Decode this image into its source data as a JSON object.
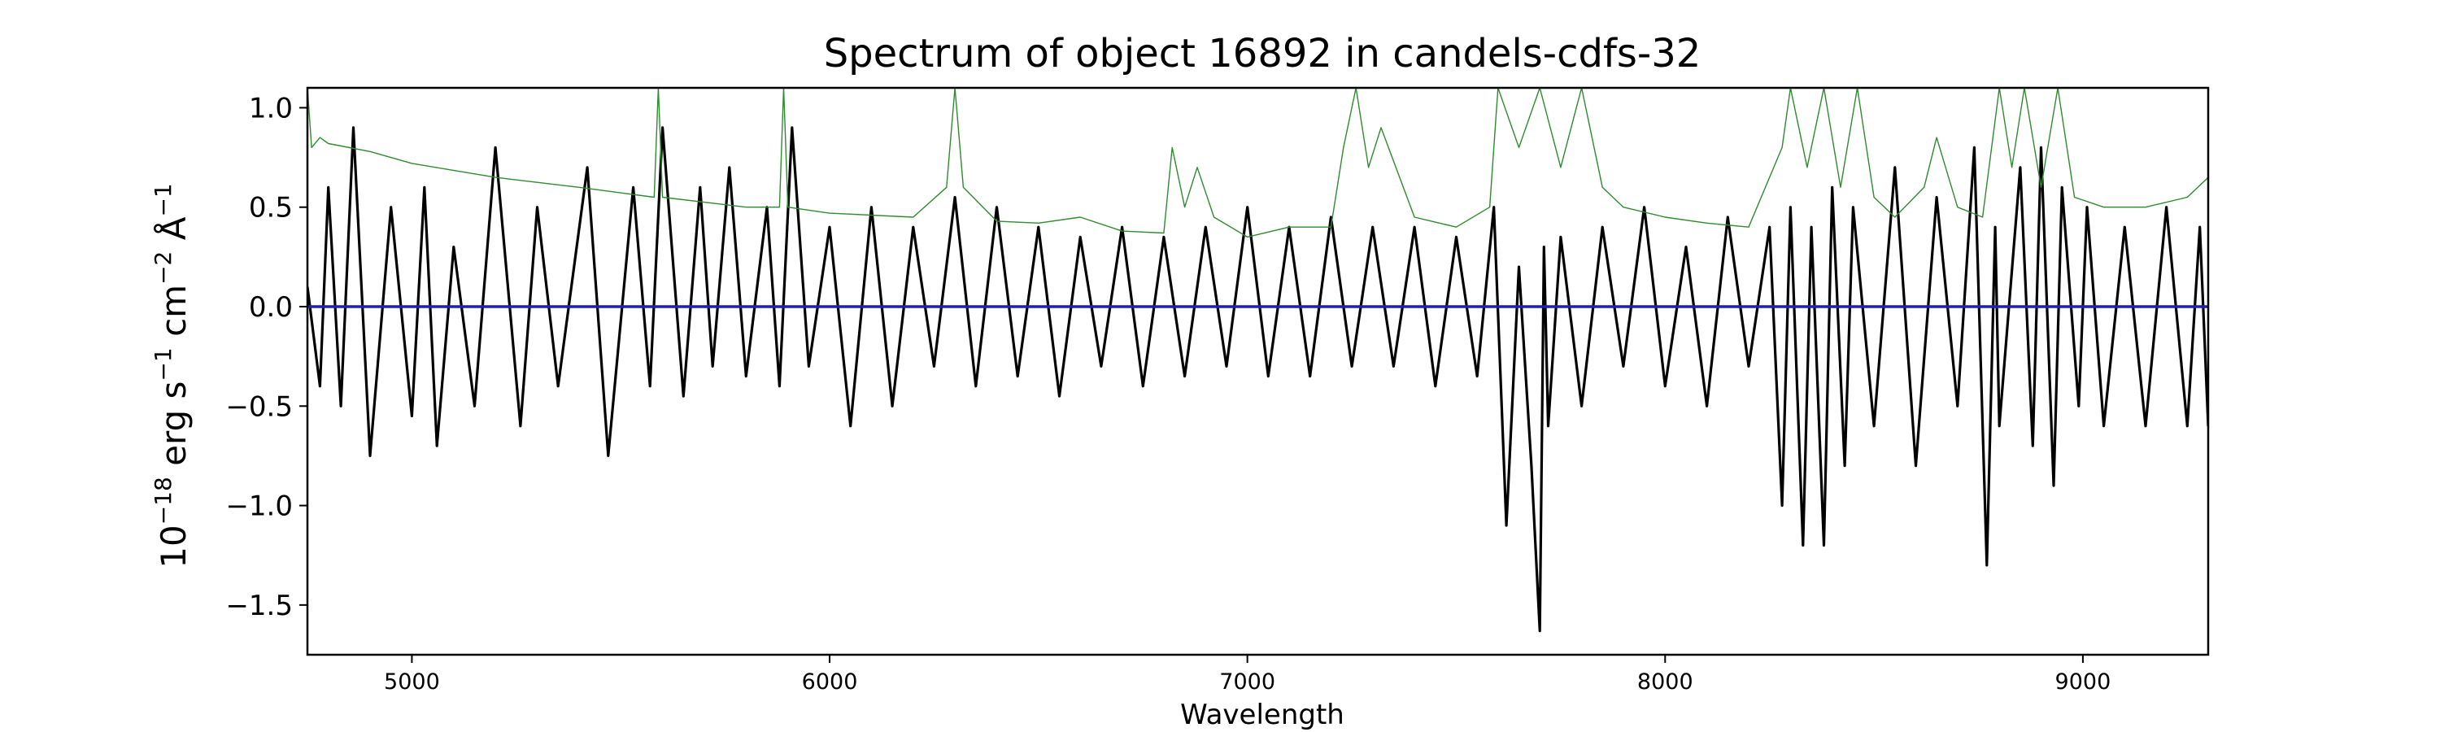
{
  "chart_data": {
    "type": "line",
    "title": "Spectrum of object 16892 in candels-cdfs-32",
    "xlabel": "Wavelength",
    "ylabel": {
      "base": "10",
      "exp1": "−18",
      "unit1": " erg s",
      "exp2": "−1",
      "unit2": " cm",
      "exp3": "−2",
      "unit3": " Å",
      "exp4": "−1"
    },
    "xlim": [
      4750,
      9300
    ],
    "ylim": [
      -1.75,
      1.1
    ],
    "x_ticks": [
      {
        "value": 5000,
        "label": "5000"
      },
      {
        "value": 6000,
        "label": "6000"
      },
      {
        "value": 7000,
        "label": "7000"
      },
      {
        "value": 8000,
        "label": "8000"
      },
      {
        "value": 9000,
        "label": "9000"
      }
    ],
    "y_ticks": [
      {
        "value": 1.0,
        "label": "1.0"
      },
      {
        "value": 0.5,
        "label": "0.5"
      },
      {
        "value": 0.0,
        "label": "0.0"
      },
      {
        "value": -0.5,
        "label": "−0.5"
      },
      {
        "value": -1.0,
        "label": "−1.0"
      },
      {
        "value": -1.5,
        "label": "−1.5"
      }
    ],
    "grid": false,
    "series": [
      {
        "role": "flux",
        "color": "#000000",
        "x": [
          4750,
          4780,
          4800,
          4830,
          4860,
          4900,
          4950,
          5000,
          5030,
          5060,
          5100,
          5150,
          5200,
          5260,
          5300,
          5350,
          5420,
          5470,
          5530,
          5570,
          5600,
          5650,
          5690,
          5720,
          5760,
          5800,
          5850,
          5880,
          5910,
          5950,
          6000,
          6050,
          6100,
          6150,
          6200,
          6250,
          6300,
          6350,
          6400,
          6450,
          6500,
          6550,
          6600,
          6650,
          6700,
          6750,
          6800,
          6850,
          6900,
          6950,
          7000,
          7050,
          7100,
          7150,
          7200,
          7250,
          7300,
          7350,
          7400,
          7450,
          7500,
          7550,
          7590,
          7620,
          7650,
          7680,
          7700,
          7710,
          7720,
          7750,
          7800,
          7850,
          7900,
          7950,
          8000,
          8050,
          8100,
          8150,
          8200,
          8250,
          8280,
          8300,
          8330,
          8350,
          8380,
          8400,
          8430,
          8450,
          8500,
          8550,
          8600,
          8650,
          8700,
          8740,
          8770,
          8790,
          8800,
          8850,
          8880,
          8900,
          8930,
          8950,
          8990,
          9010,
          9050,
          9100,
          9150,
          9200,
          9250,
          9280,
          9300
        ],
        "y": [
          0.1,
          -0.4,
          0.6,
          -0.5,
          0.9,
          -0.75,
          0.5,
          -0.55,
          0.6,
          -0.7,
          0.3,
          -0.5,
          0.8,
          -0.6,
          0.5,
          -0.4,
          0.7,
          -0.75,
          0.6,
          -0.4,
          0.9,
          -0.45,
          0.6,
          -0.3,
          0.7,
          -0.35,
          0.5,
          -0.4,
          0.9,
          -0.3,
          0.4,
          -0.6,
          0.5,
          -0.5,
          0.4,
          -0.3,
          0.55,
          -0.4,
          0.5,
          -0.35,
          0.4,
          -0.45,
          0.35,
          -0.3,
          0.4,
          -0.4,
          0.35,
          -0.35,
          0.4,
          -0.3,
          0.5,
          -0.35,
          0.4,
          -0.35,
          0.45,
          -0.3,
          0.4,
          -0.3,
          0.4,
          -0.4,
          0.35,
          -0.35,
          0.5,
          -1.1,
          0.2,
          -0.8,
          -1.63,
          0.3,
          -0.6,
          0.35,
          -0.5,
          0.4,
          -0.3,
          0.5,
          -0.4,
          0.3,
          -0.5,
          0.45,
          -0.3,
          0.4,
          -1.0,
          0.5,
          -1.2,
          0.4,
          -1.2,
          0.6,
          -0.8,
          0.5,
          -0.6,
          0.7,
          -0.8,
          0.55,
          -0.5,
          0.8,
          -1.3,
          0.4,
          -0.6,
          0.7,
          -0.7,
          0.8,
          -0.9,
          0.6,
          -0.5,
          0.5,
          -0.6,
          0.4,
          -0.6,
          0.5,
          -0.6,
          0.4,
          -0.6
        ]
      },
      {
        "role": "error",
        "color": "#2e8b2e",
        "x": [
          4750,
          4760,
          4780,
          4800,
          4900,
          5000,
          5200,
          5400,
          5580,
          5590,
          5600,
          5800,
          5880,
          5890,
          5900,
          6000,
          6200,
          6280,
          6300,
          6320,
          6400,
          6500,
          6600,
          6700,
          6800,
          6820,
          6850,
          6880,
          6920,
          7000,
          7100,
          7200,
          7230,
          7260,
          7290,
          7320,
          7400,
          7500,
          7580,
          7600,
          7650,
          7700,
          7750,
          7800,
          7850,
          7900,
          8000,
          8100,
          8200,
          8280,
          8300,
          8340,
          8380,
          8420,
          8460,
          8500,
          8550,
          8620,
          8650,
          8700,
          8760,
          8800,
          8830,
          8860,
          8900,
          8940,
          8980,
          9050,
          9150,
          9250,
          9300
        ],
        "y": [
          1.1,
          0.8,
          0.85,
          0.82,
          0.78,
          0.72,
          0.65,
          0.6,
          0.55,
          1.1,
          0.55,
          0.5,
          0.5,
          1.1,
          0.5,
          0.47,
          0.45,
          0.6,
          1.1,
          0.6,
          0.43,
          0.42,
          0.45,
          0.38,
          0.37,
          0.8,
          0.5,
          0.7,
          0.45,
          0.35,
          0.4,
          0.4,
          0.8,
          1.1,
          0.7,
          0.9,
          0.45,
          0.4,
          0.5,
          1.1,
          0.8,
          1.1,
          0.7,
          1.1,
          0.6,
          0.5,
          0.45,
          0.42,
          0.4,
          0.8,
          1.1,
          0.7,
          1.1,
          0.6,
          1.1,
          0.55,
          0.45,
          0.6,
          0.85,
          0.5,
          0.45,
          1.1,
          0.7,
          1.1,
          0.6,
          1.1,
          0.55,
          0.5,
          0.5,
          0.55,
          0.65
        ]
      },
      {
        "role": "model",
        "color": "#1f1fb4",
        "x": [
          4750,
          9300
        ],
        "y": [
          0.0,
          0.0
        ]
      }
    ]
  }
}
